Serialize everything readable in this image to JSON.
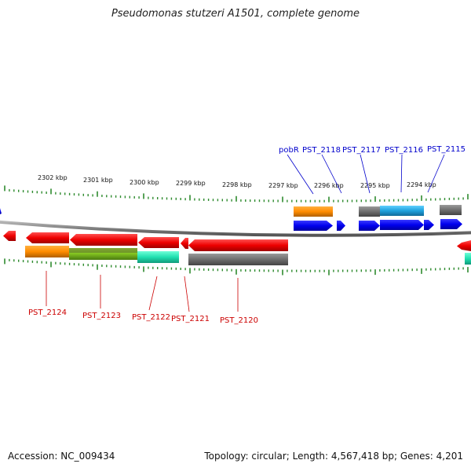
{
  "title": "Pseudomonas stutzeri A1501, complete genome",
  "footer": {
    "accession": "Accession: NC_009434",
    "summary": "Topology: circular; Length: 4,567,418 bp; Genes: 4,201"
  },
  "scale": {
    "ticks": [
      {
        "label": "2302 kbp"
      },
      {
        "label": "2301 kbp"
      },
      {
        "label": "2300 kbp"
      },
      {
        "label": "2299 kbp"
      },
      {
        "label": "2298 kbp"
      },
      {
        "label": "2297 kbp"
      },
      {
        "label": "2296 kbp"
      },
      {
        "label": "2295 kbp"
      },
      {
        "label": "2294 kbp"
      }
    ]
  },
  "gene_labels_top": [
    {
      "label": "pobR",
      "color": "#0000cc"
    },
    {
      "label": "PST_2118",
      "color": "#0000cc"
    },
    {
      "label": "PST_2117",
      "color": "#0000cc"
    },
    {
      "label": "PST_2116",
      "color": "#0000cc"
    },
    {
      "label": "PST_2115",
      "color": "#0000cc"
    }
  ],
  "gene_labels_bottom": [
    {
      "label": "PST_2124",
      "color": "#cc0000"
    },
    {
      "label": "PST_2123",
      "color": "#cc0000"
    },
    {
      "label": "PST_2122",
      "color": "#cc0000"
    },
    {
      "label": "PST_2121",
      "color": "#cc0000"
    },
    {
      "label": "PST_2120",
      "color": "#cc0000"
    }
  ],
  "colors": {
    "forward_strand": "#0000ee",
    "reverse_strand": "#ee0000",
    "backbone": "#808080",
    "tick": "#2e8b2e",
    "cog_orange": "#ff8c00",
    "cog_gray": "#6e6e6e",
    "cog_cyan": "#1ea0dc",
    "cog_green": "#80c020",
    "cog_teal": "#20e0b0"
  }
}
